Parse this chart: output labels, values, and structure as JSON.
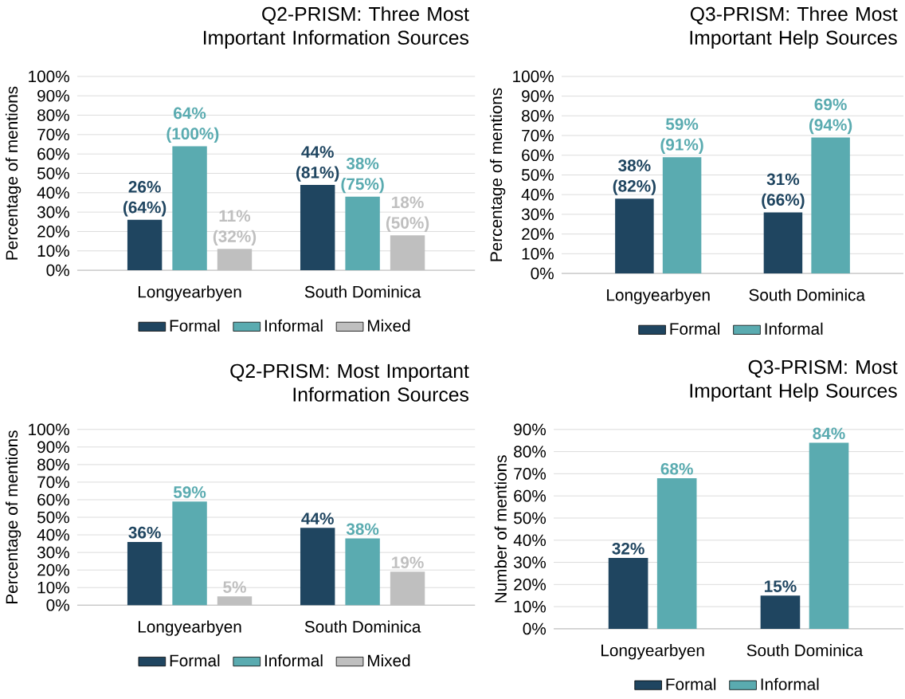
{
  "chart_data": [
    {
      "type": "bar",
      "title": "Q2-PRISM: Three Most Important Information Sources",
      "ylabel": "Percentage of mentions",
      "categories": [
        "Longyearbyen",
        "South Dominica"
      ],
      "series": [
        {
          "name": "Formal",
          "color": "#1f4560",
          "values": [
            26,
            44
          ],
          "value_labels": [
            "26% (64%)",
            "44% (81%)"
          ]
        },
        {
          "name": "Informal",
          "color": "#5aabb0",
          "values": [
            64,
            38
          ],
          "value_labels": [
            "64% (100%)",
            "38% (75%)"
          ]
        },
        {
          "name": "Mixed",
          "color": "#bfbfbf",
          "values": [
            11,
            18
          ],
          "value_labels": [
            "11% (32%)",
            "18% (50%)"
          ]
        }
      ],
      "ylim": [
        0,
        100
      ],
      "yticks": [
        {
          "value": 0,
          "label": "0%"
        },
        {
          "value": 10,
          "label": "10%"
        },
        {
          "value": 20,
          "label": "20%"
        },
        {
          "value": 30,
          "label": "30%"
        },
        {
          "value": 40,
          "label": "40%"
        },
        {
          "value": 50,
          "label": "50%"
        },
        {
          "value": 60,
          "label": "60%"
        },
        {
          "value": 70,
          "label": "70%"
        },
        {
          "value": 80,
          "label": "80%"
        },
        {
          "value": 90,
          "label": "90%"
        },
        {
          "value": 100,
          "label": "100%"
        }
      ],
      "grid": "y",
      "legend": "bottom"
    },
    {
      "type": "bar",
      "title": "Q3-PRISM: Three Most Important Help Sources",
      "ylabel": "Percentage of mentions",
      "categories": [
        "Longyearbyen",
        "South Dominica"
      ],
      "series": [
        {
          "name": "Formal",
          "color": "#1f4560",
          "values": [
            38,
            31
          ],
          "value_labels": [
            "38% (82%)",
            "31% (66%)"
          ]
        },
        {
          "name": "Informal",
          "color": "#5aabb0",
          "values": [
            59,
            69
          ],
          "value_labels": [
            "59% (91%)",
            "69% (94%)"
          ]
        }
      ],
      "ylim": [
        0,
        100
      ],
      "yticks": [
        {
          "value": 0,
          "label": "0%"
        },
        {
          "value": 10,
          "label": "10%"
        },
        {
          "value": 20,
          "label": "20%"
        },
        {
          "value": 30,
          "label": "30%"
        },
        {
          "value": 40,
          "label": "40%"
        },
        {
          "value": 50,
          "label": "50%"
        },
        {
          "value": 60,
          "label": "60%"
        },
        {
          "value": 70,
          "label": "70%"
        },
        {
          "value": 80,
          "label": "80%"
        },
        {
          "value": 90,
          "label": "90%"
        },
        {
          "value": 100,
          "label": "100%"
        }
      ],
      "grid": "y",
      "legend": "bottom"
    },
    {
      "type": "bar",
      "title": "Q2-PRISM: Most Important Information Sources",
      "ylabel": "Percentage of mentions",
      "categories": [
        "Longyearbyen",
        "South Dominica"
      ],
      "series": [
        {
          "name": "Formal",
          "color": "#1f4560",
          "values": [
            36,
            44
          ],
          "value_labels": [
            "36%",
            "44%"
          ]
        },
        {
          "name": "Informal",
          "color": "#5aabb0",
          "values": [
            59,
            38
          ],
          "value_labels": [
            "59%",
            "38%"
          ]
        },
        {
          "name": "Mixed",
          "color": "#bfbfbf",
          "values": [
            5,
            19
          ],
          "value_labels": [
            "5%",
            "19%"
          ]
        }
      ],
      "ylim": [
        0,
        100
      ],
      "yticks": [
        {
          "value": 0,
          "label": "0%"
        },
        {
          "value": 10,
          "label": "10%"
        },
        {
          "value": 20,
          "label": "20%"
        },
        {
          "value": 30,
          "label": "30%"
        },
        {
          "value": 40,
          "label": "40%"
        },
        {
          "value": 50,
          "label": "50%"
        },
        {
          "value": 60,
          "label": "60%"
        },
        {
          "value": 70,
          "label": "70%"
        },
        {
          "value": 80,
          "label": "80%"
        },
        {
          "value": 90,
          "label": "90%"
        },
        {
          "value": 100,
          "label": "100%"
        }
      ],
      "grid": "y",
      "legend": "bottom"
    },
    {
      "type": "bar",
      "title": "Q3-PRISM: Most Important Help Sources",
      "ylabel": "Number of mentions",
      "categories": [
        "Longyearbyen",
        "South Dominica"
      ],
      "series": [
        {
          "name": "Formal",
          "color": "#1f4560",
          "values": [
            32,
            15
          ],
          "value_labels": [
            "32%",
            "15%"
          ]
        },
        {
          "name": "Informal",
          "color": "#5aabb0",
          "values": [
            68,
            84
          ],
          "value_labels": [
            "68%",
            "84%"
          ]
        }
      ],
      "ylim": [
        0,
        90
      ],
      "yticks": [
        {
          "value": 0,
          "label": "0%"
        },
        {
          "value": 10,
          "label": "10%"
        },
        {
          "value": 20,
          "label": "20%"
        },
        {
          "value": 30,
          "label": "30%"
        },
        {
          "value": 40,
          "label": "40%"
        },
        {
          "value": 50,
          "label": "50%"
        },
        {
          "value": 60,
          "label": "60%"
        },
        {
          "value": 70,
          "label": "70%"
        },
        {
          "value": 80,
          "label": "80%"
        },
        {
          "value": 90,
          "label": "90%"
        }
      ],
      "grid": "y",
      "legend": "bottom"
    }
  ]
}
